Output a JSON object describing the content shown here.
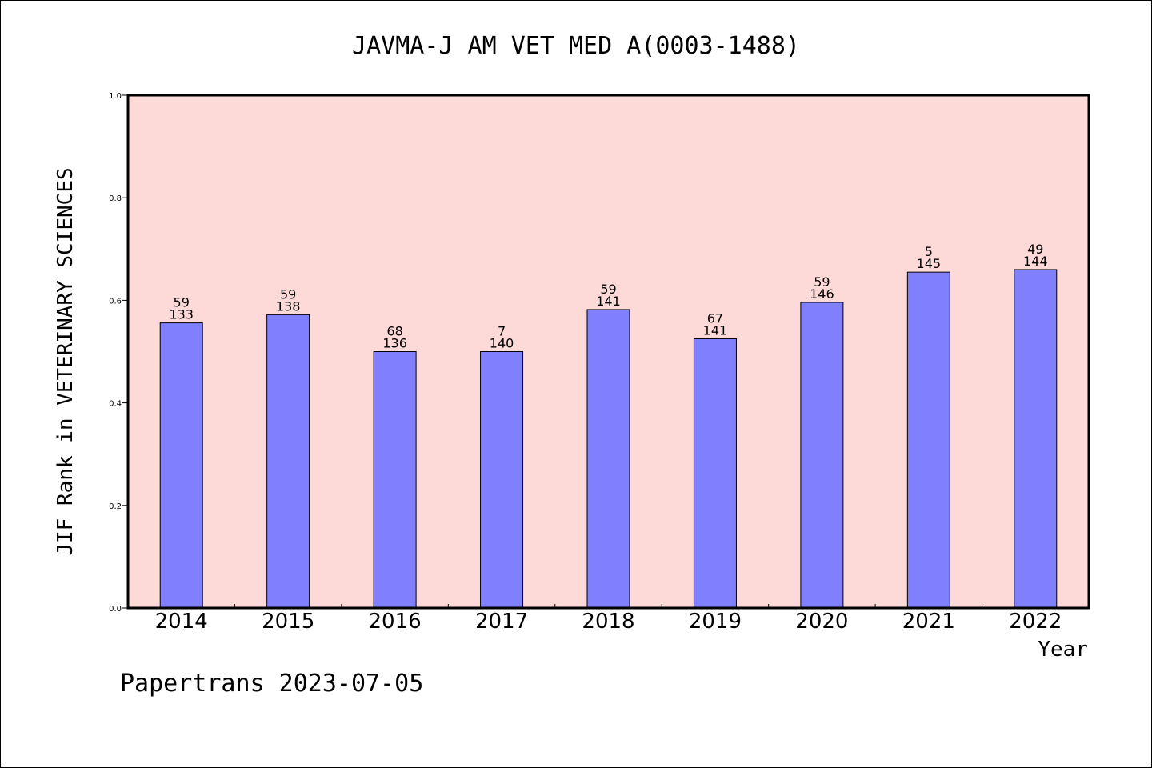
{
  "chart_data": {
    "type": "bar",
    "title": "JAVMA-J AM VET MED A(0003-1488)",
    "xlabel": "Year",
    "ylabel": "JIF Rank in VETERINARY SCIENCES",
    "ylim": [
      0,
      1.0
    ],
    "yticks": [
      "0.0",
      "0.2",
      "0.4",
      "0.6",
      "0.8",
      "1.0"
    ],
    "grid": false,
    "categories": [
      "2014",
      "2015",
      "2016",
      "2017",
      "2018",
      "2019",
      "2020",
      "2021",
      "2022"
    ],
    "values": [
      0.556,
      0.572,
      0.5,
      0.5,
      0.582,
      0.525,
      0.596,
      0.655,
      0.66
    ],
    "labels_top": [
      "59",
      "59",
      "68",
      "7",
      "59",
      "67",
      "59",
      "5",
      "49"
    ],
    "labels_bottom": [
      "133",
      "138",
      "136",
      "140",
      "141",
      "141",
      "146",
      "145",
      "144"
    ],
    "colors": {
      "bar": "#8080ff",
      "plot_background": "#fddad8",
      "axis": "#000000"
    }
  },
  "footer": {
    "watermark": "Papertrans 2023-07-05"
  }
}
